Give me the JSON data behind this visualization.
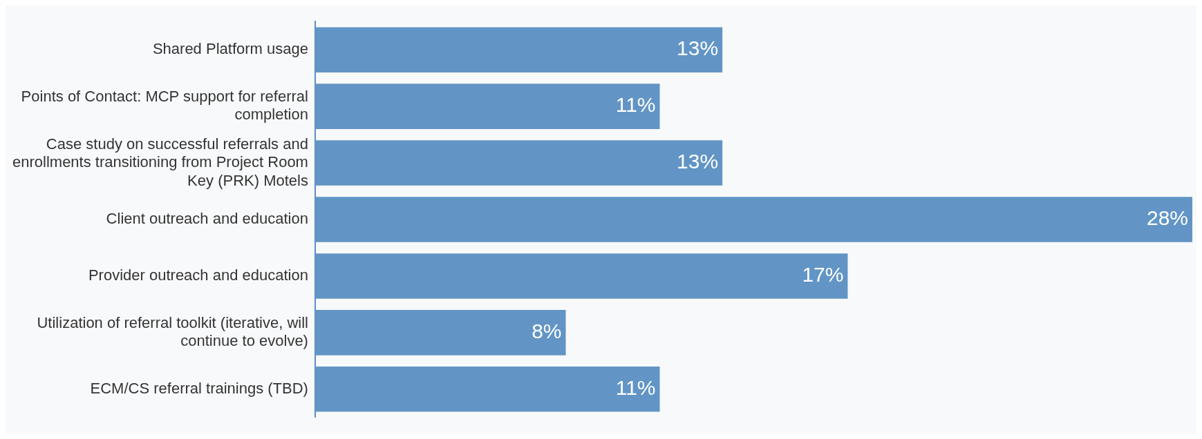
{
  "chart_data": {
    "type": "bar",
    "orientation": "horizontal",
    "categories": [
      "Shared Platform usage",
      "Points of Contact: MCP support for referral completion",
      "Case study on successful referrals and enrollments transitioning from Project Room Key (PRK) Motels",
      "Client outreach and education",
      "Provider outreach and education",
      "Utilization of referral toolkit (iterative, will continue to evolve)",
      "ECM/CS referral trainings (TBD)"
    ],
    "values": [
      13,
      11,
      13,
      28,
      17,
      8,
      11
    ],
    "value_labels": [
      "13%",
      "11%",
      "13%",
      "28%",
      "17%",
      "8%",
      "11%"
    ],
    "color": "#6295c5",
    "xlim": [
      0,
      28
    ],
    "legend": false
  }
}
